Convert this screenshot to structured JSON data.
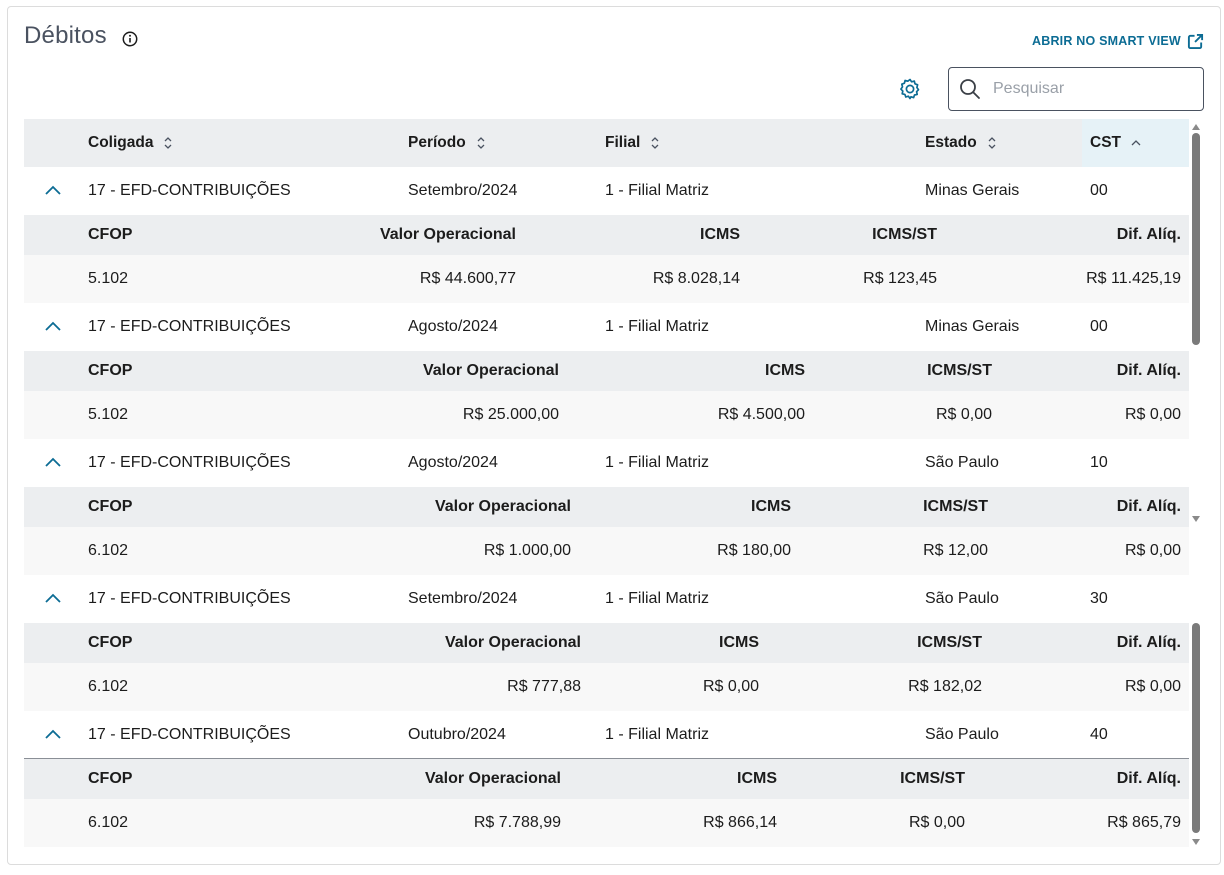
{
  "header": {
    "title": "Débitos",
    "smart_view_label": "ABRIR NO SMART VIEW"
  },
  "search": {
    "placeholder": "Pesquisar",
    "value": ""
  },
  "table": {
    "columns": [
      "Coligada",
      "Período",
      "Filial",
      "Estado",
      "CST"
    ],
    "sorted_column": "CST",
    "sub_columns": [
      "CFOP",
      "Valor Operacional",
      "ICMS",
      "ICMS/ST",
      "Dif. Alíq."
    ],
    "rows": [
      {
        "coligada": "17 - EFD-CONTRIBUIÇÕES",
        "periodo": "Setembro/2024",
        "filial": "1 - Filial Matriz",
        "estado": "Minas Gerais",
        "cst": "00",
        "detail": {
          "cfop": "5.102",
          "valor": "R$ 44.600,77",
          "icms": "R$ 8.028,14",
          "icms_st": "R$ 123,45",
          "dif": "R$ 11.425,19"
        }
      },
      {
        "coligada": "17 - EFD-CONTRIBUIÇÕES",
        "periodo": "Agosto/2024",
        "filial": "1 - Filial Matriz",
        "estado": "Minas Gerais",
        "cst": "00",
        "detail": {
          "cfop": "5.102",
          "valor": "R$ 25.000,00",
          "icms": "R$ 4.500,00",
          "icms_st": "R$ 0,00",
          "dif": "R$ 0,00"
        }
      },
      {
        "coligada": "17 - EFD-CONTRIBUIÇÕES",
        "periodo": "Agosto/2024",
        "filial": "1 - Filial Matriz",
        "estado": "São Paulo",
        "cst": "10",
        "detail": {
          "cfop": "6.102",
          "valor": "R$ 1.000,00",
          "icms": "R$ 180,00",
          "icms_st": "R$ 12,00",
          "dif": "R$ 0,00"
        }
      },
      {
        "coligada": "17 - EFD-CONTRIBUIÇÕES",
        "periodo": "Setembro/2024",
        "filial": "1 - Filial Matriz",
        "estado": "São Paulo",
        "cst": "30",
        "detail": {
          "cfop": "6.102",
          "valor": "R$ 777,88",
          "icms": "R$ 0,00",
          "icms_st": "R$ 182,02",
          "dif": "R$ 0,00"
        }
      },
      {
        "coligada": "17 - EFD-CONTRIBUIÇÕES",
        "periodo": "Outubro/2024",
        "filial": "1 - Filial Matriz",
        "estado": "São Paulo",
        "cst": "40",
        "detail": {
          "cfop": "6.102",
          "valor": "R$ 7.788,99",
          "icms": "R$ 866,14",
          "icms_st": "R$ 0,00",
          "dif": "R$ 865,79"
        }
      }
    ]
  },
  "colors": {
    "accent": "#0c6c94",
    "header_bg": "#eceef0",
    "sorted_bg": "#e6f2f7",
    "title": "#4a5260"
  }
}
